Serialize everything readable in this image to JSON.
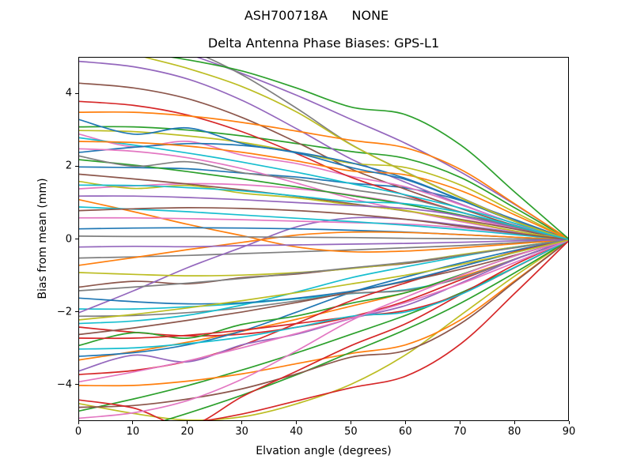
{
  "title_line1": "ASH700718A      NONE",
  "title_line2": "Delta Antenna Phase Biases: GPS-L1",
  "chart_data": {
    "type": "line",
    "title": "ASH700718A      NONE",
    "subtitle": "Delta Antenna Phase Biases: GPS-L1",
    "xlabel": "Elvation angle (degrees)",
    "ylabel": "Bias from mean (mm)",
    "xlim": [
      0,
      90
    ],
    "ylim": [
      -5.0,
      5.0
    ],
    "x_ticks": [
      0,
      10,
      20,
      30,
      40,
      50,
      60,
      70,
      80,
      90
    ],
    "x_tick_labels": [
      "0",
      "10",
      "20",
      "30",
      "40",
      "50",
      "60",
      "70",
      "80",
      "90"
    ],
    "y_ticks": [
      -4,
      -2,
      0,
      2,
      4
    ],
    "y_tick_labels": [
      "−4",
      "−2",
      "0",
      "2",
      "4"
    ],
    "grid": false,
    "legend": "none",
    "line_width": 1.7,
    "description": "Many overlapping phase-bias curves, one per satellite/azimuth, all converging to 0 mm at 90 degrees elevation",
    "x": [
      0,
      10,
      20,
      30,
      40,
      50,
      60,
      70,
      80,
      90
    ],
    "series": [
      {
        "color": "#1f77b4",
        "y": [
          2.0,
          1.98,
          1.95,
          1.83,
          1.72,
          1.55,
          1.42,
          1.08,
          0.55,
          0
        ]
      },
      {
        "color": "#ff7f0e",
        "y": [
          -3.3,
          -3.07,
          -2.81,
          -2.51,
          -2.18,
          -1.82,
          -1.45,
          -1.02,
          -0.53,
          0
        ]
      },
      {
        "color": "#2ca02c",
        "y": [
          3.1,
          3.1,
          3.01,
          2.85,
          2.64,
          2.42,
          2.23,
          1.71,
          0.87,
          0
        ]
      },
      {
        "color": "#d62728",
        "y": [
          -2.4,
          -2.54,
          -2.64,
          -2.59,
          -2.4,
          -2.11,
          -1.68,
          -1.1,
          -0.53,
          0
        ]
      },
      {
        "color": "#9467bd",
        "y": [
          4.9,
          4.75,
          4.41,
          3.82,
          3.04,
          2.21,
          1.57,
          0.98,
          0.44,
          0
        ]
      },
      {
        "color": "#8c564b",
        "y": [
          4.3,
          4.17,
          3.87,
          3.35,
          2.67,
          1.94,
          1.38,
          0.86,
          0.39,
          0
        ]
      },
      {
        "color": "#e377c2",
        "y": [
          2.9,
          2.55,
          2.7,
          2.32,
          2.09,
          1.74,
          1.45,
          0.96,
          0.44,
          0
        ]
      },
      {
        "color": "#7f7f7f",
        "y": [
          -0.5,
          -0.47,
          -0.43,
          -0.38,
          -0.33,
          -0.28,
          -0.22,
          -0.16,
          -0.08,
          0
        ]
      },
      {
        "color": "#bcbd22",
        "y": [
          3.0,
          2.97,
          2.85,
          2.67,
          2.4,
          2.1,
          1.98,
          1.5,
          0.75,
          0
        ]
      },
      {
        "color": "#17becf",
        "y": [
          -1.9,
          -1.9,
          -1.84,
          -1.75,
          -1.62,
          -1.48,
          -1.37,
          -1.05,
          -0.53,
          0
        ]
      },
      {
        "color": "#1f77b4",
        "y": [
          -3.2,
          -3.1,
          -2.88,
          -2.5,
          -1.98,
          -1.44,
          -1.02,
          -0.64,
          -0.29,
          0
        ]
      },
      {
        "color": "#ff7f0e",
        "y": [
          1.1,
          0.77,
          0.42,
          0.11,
          -0.2,
          -0.33,
          -0.31,
          -0.22,
          -0.11,
          0
        ]
      },
      {
        "color": "#2ca02c",
        "y": [
          -4.7,
          -4.37,
          -4.0,
          -3.57,
          -3.1,
          -2.59,
          -2.07,
          -1.46,
          -0.75,
          0
        ]
      },
      {
        "color": "#d62728",
        "y": [
          3.8,
          3.69,
          3.42,
          2.96,
          2.36,
          1.71,
          1.22,
          0.76,
          0.34,
          0
        ]
      },
      {
        "color": "#9467bd",
        "y": [
          6.0,
          5.58,
          5.1,
          4.56,
          3.96,
          3.3,
          2.64,
          1.86,
          0.96,
          0
        ]
      },
      {
        "color": "#8c564b",
        "y": [
          -1.3,
          -1.14,
          -1.21,
          -1.04,
          -0.94,
          -0.78,
          -0.65,
          -0.43,
          -0.2,
          0
        ]
      },
      {
        "color": "#e377c2",
        "y": [
          1.4,
          1.48,
          1.54,
          1.51,
          1.4,
          1.23,
          0.98,
          0.64,
          0.31,
          0
        ]
      },
      {
        "color": "#7f7f7f",
        "y": [
          -2.1,
          -2.08,
          -2.0,
          -1.87,
          -1.68,
          -1.47,
          -1.39,
          -1.05,
          -0.53,
          0
        ]
      },
      {
        "color": "#bcbd22",
        "y": [
          -4.5,
          -4.77,
          -4.95,
          -4.86,
          -4.5,
          -3.96,
          -3.15,
          -2.07,
          -0.99,
          0
        ]
      },
      {
        "color": "#17becf",
        "y": [
          2.8,
          2.6,
          2.38,
          2.13,
          1.85,
          1.54,
          1.23,
          0.87,
          0.45,
          0
        ]
      },
      {
        "color": "#1f77b4",
        "y": [
          2.4,
          2.54,
          2.64,
          2.59,
          2.4,
          2.11,
          1.68,
          1.1,
          0.53,
          0
        ]
      },
      {
        "color": "#ff7f0e",
        "y": [
          -4.0,
          -4.0,
          -3.88,
          -3.68,
          -3.4,
          -3.12,
          -2.88,
          -2.2,
          -1.12,
          0
        ]
      },
      {
        "color": "#2ca02c",
        "y": [
          -2.9,
          -2.55,
          -2.7,
          -2.32,
          -2.09,
          -1.74,
          -1.45,
          -0.96,
          -0.44,
          0
        ]
      },
      {
        "color": "#d62728",
        "y": [
          -3.7,
          -3.59,
          -3.33,
          -2.89,
          -2.29,
          -1.67,
          -1.18,
          -0.74,
          -0.33,
          0
        ]
      },
      {
        "color": "#9467bd",
        "y": [
          -2.0,
          -1.4,
          -0.76,
          -0.2,
          0.36,
          0.6,
          0.56,
          0.4,
          0.2,
          0
        ]
      },
      {
        "color": "#8c564b",
        "y": [
          1.8,
          1.67,
          1.53,
          1.37,
          1.19,
          0.99,
          0.79,
          0.56,
          0.29,
          0
        ]
      },
      {
        "color": "#e377c2",
        "y": [
          0.6,
          0.6,
          0.58,
          0.55,
          0.51,
          0.47,
          0.43,
          0.33,
          0.17,
          0
        ]
      },
      {
        "color": "#7f7f7f",
        "y": [
          5.8,
          5.63,
          5.22,
          4.52,
          3.6,
          2.61,
          1.86,
          1.16,
          0.52,
          0
        ]
      },
      {
        "color": "#bcbd22",
        "y": [
          -0.9,
          -0.95,
          -0.99,
          -0.97,
          -0.9,
          -0.79,
          -0.63,
          -0.41,
          -0.2,
          0
        ]
      },
      {
        "color": "#17becf",
        "y": [
          -2.3,
          -2.23,
          -2.07,
          -1.79,
          -1.43,
          -1.04,
          -0.74,
          -0.46,
          -0.21,
          0
        ]
      },
      {
        "color": "#1f77b4",
        "y": [
          0.3,
          0.32,
          0.33,
          0.32,
          0.3,
          0.26,
          0.21,
          0.14,
          0.07,
          0
        ]
      },
      {
        "color": "#ff7f0e",
        "y": [
          2.7,
          2.67,
          2.57,
          2.4,
          2.16,
          1.89,
          1.78,
          1.35,
          0.68,
          0
        ]
      },
      {
        "color": "#2ca02c",
        "y": [
          -5.6,
          -5.21,
          -4.76,
          -4.26,
          -3.7,
          -3.08,
          -2.46,
          -1.74,
          -0.9,
          0
        ]
      },
      {
        "color": "#d62728",
        "y": [
          -2.7,
          -2.7,
          -2.62,
          -2.48,
          -2.3,
          -2.11,
          -1.94,
          -1.49,
          -0.76,
          0
        ]
      },
      {
        "color": "#9467bd",
        "y": [
          -3.6,
          -3.17,
          -3.35,
          -2.88,
          -2.59,
          -2.16,
          -1.8,
          -1.19,
          -0.54,
          0
        ]
      },
      {
        "color": "#8c564b",
        "y": [
          -4.6,
          -4.55,
          -4.37,
          -4.09,
          -3.68,
          -3.22,
          -3.04,
          -2.3,
          -1.15,
          0
        ]
      },
      {
        "color": "#e377c2",
        "y": [
          2.5,
          2.43,
          2.25,
          1.95,
          1.55,
          1.13,
          0.8,
          0.5,
          0.23,
          0
        ]
      },
      {
        "color": "#7f7f7f",
        "y": [
          -1.4,
          -1.3,
          -1.19,
          -1.06,
          -0.92,
          -0.77,
          -0.62,
          -0.43,
          -0.22,
          0
        ]
      },
      {
        "color": "#bcbd22",
        "y": [
          1.6,
          1.41,
          1.49,
          1.28,
          1.15,
          0.96,
          0.8,
          0.53,
          0.24,
          0
        ]
      },
      {
        "color": "#17becf",
        "y": [
          0.9,
          0.84,
          0.77,
          0.68,
          0.59,
          0.5,
          0.4,
          0.28,
          0.14,
          0
        ]
      },
      {
        "color": "#1f77b4",
        "y": [
          3.3,
          2.9,
          3.07,
          2.64,
          2.38,
          1.98,
          1.65,
          1.09,
          0.5,
          0
        ]
      },
      {
        "color": "#ff7f0e",
        "y": [
          -0.7,
          -0.49,
          -0.27,
          -0.07,
          0.13,
          0.21,
          0.2,
          0.14,
          0.07,
          0
        ]
      },
      {
        "color": "#2ca02c",
        "y": [
          2.2,
          2.05,
          1.87,
          1.67,
          1.45,
          1.21,
          0.97,
          0.68,
          0.35,
          0
        ]
      },
      {
        "color": "#d62728",
        "y": [
          -4.4,
          -4.62,
          -5.1,
          -4.3,
          -3.6,
          -2.9,
          -2.3,
          -1.5,
          -0.68,
          0
        ]
      },
      {
        "color": "#9467bd",
        "y": [
          1.2,
          1.2,
          1.16,
          1.1,
          1.02,
          0.94,
          0.86,
          0.66,
          0.34,
          0
        ]
      },
      {
        "color": "#8c564b",
        "y": [
          -2.6,
          -2.42,
          -2.21,
          -1.98,
          -1.72,
          -1.43,
          -1.14,
          -0.81,
          -0.42,
          0
        ]
      },
      {
        "color": "#e377c2",
        "y": [
          -4.9,
          -4.75,
          -4.41,
          -3.82,
          -3.04,
          -2.21,
          -1.57,
          -0.98,
          -0.44,
          0
        ]
      },
      {
        "color": "#7f7f7f",
        "y": [
          0.1,
          0.09,
          0.09,
          0.08,
          0.07,
          0.06,
          0.04,
          0.03,
          0.02,
          0
        ]
      },
      {
        "color": "#bcbd22",
        "y": [
          5.6,
          5.1,
          4.7,
          4.2,
          3.5,
          2.6,
          1.85,
          1.15,
          0.5,
          0
        ]
      },
      {
        "color": "#17becf",
        "y": [
          -3.0,
          -2.97,
          -2.85,
          -2.67,
          -2.4,
          -2.1,
          -1.98,
          -1.5,
          -0.75,
          0
        ]
      },
      {
        "color": "#1f77b4",
        "y": [
          -1.6,
          -1.7,
          -1.76,
          -1.73,
          -1.6,
          -1.41,
          -1.12,
          -0.74,
          -0.35,
          0
        ]
      },
      {
        "color": "#ff7f0e",
        "y": [
          3.5,
          3.5,
          3.4,
          3.22,
          2.98,
          2.73,
          2.52,
          1.93,
          0.98,
          0
        ]
      },
      {
        "color": "#2ca02c",
        "y": [
          5.2,
          5.15,
          4.94,
          4.63,
          4.16,
          3.64,
          3.43,
          2.6,
          1.3,
          0
        ]
      },
      {
        "color": "#d62728",
        "y": [
          -5.2,
          -5.2,
          -5.04,
          -4.78,
          -4.42,
          -4.06,
          -3.74,
          -2.86,
          -1.46,
          0
        ]
      },
      {
        "color": "#9467bd",
        "y": [
          -0.2,
          -0.18,
          -0.19,
          -0.16,
          -0.14,
          -0.12,
          -0.1,
          -0.07,
          -0.03,
          0
        ]
      },
      {
        "color": "#8c564b",
        "y": [
          0.8,
          0.85,
          0.88,
          0.86,
          0.8,
          0.7,
          0.56,
          0.37,
          0.18,
          0
        ]
      },
      {
        "color": "#e377c2",
        "y": [
          -3.9,
          -3.63,
          -3.32,
          -2.96,
          -2.57,
          -2.15,
          -1.72,
          -1.21,
          -0.62,
          0
        ]
      },
      {
        "color": "#7f7f7f",
        "y": [
          2.3,
          2.02,
          2.14,
          1.84,
          1.66,
          1.38,
          1.15,
          0.76,
          0.35,
          0
        ]
      },
      {
        "color": "#bcbd22",
        "y": [
          -2.2,
          -2.05,
          -1.87,
          -1.67,
          -1.45,
          -1.21,
          -0.97,
          -0.68,
          -0.35,
          0
        ]
      },
      {
        "color": "#17becf",
        "y": [
          1.5,
          1.49,
          1.43,
          1.34,
          1.2,
          1.05,
          0.99,
          0.75,
          0.38,
          0
        ]
      }
    ]
  }
}
